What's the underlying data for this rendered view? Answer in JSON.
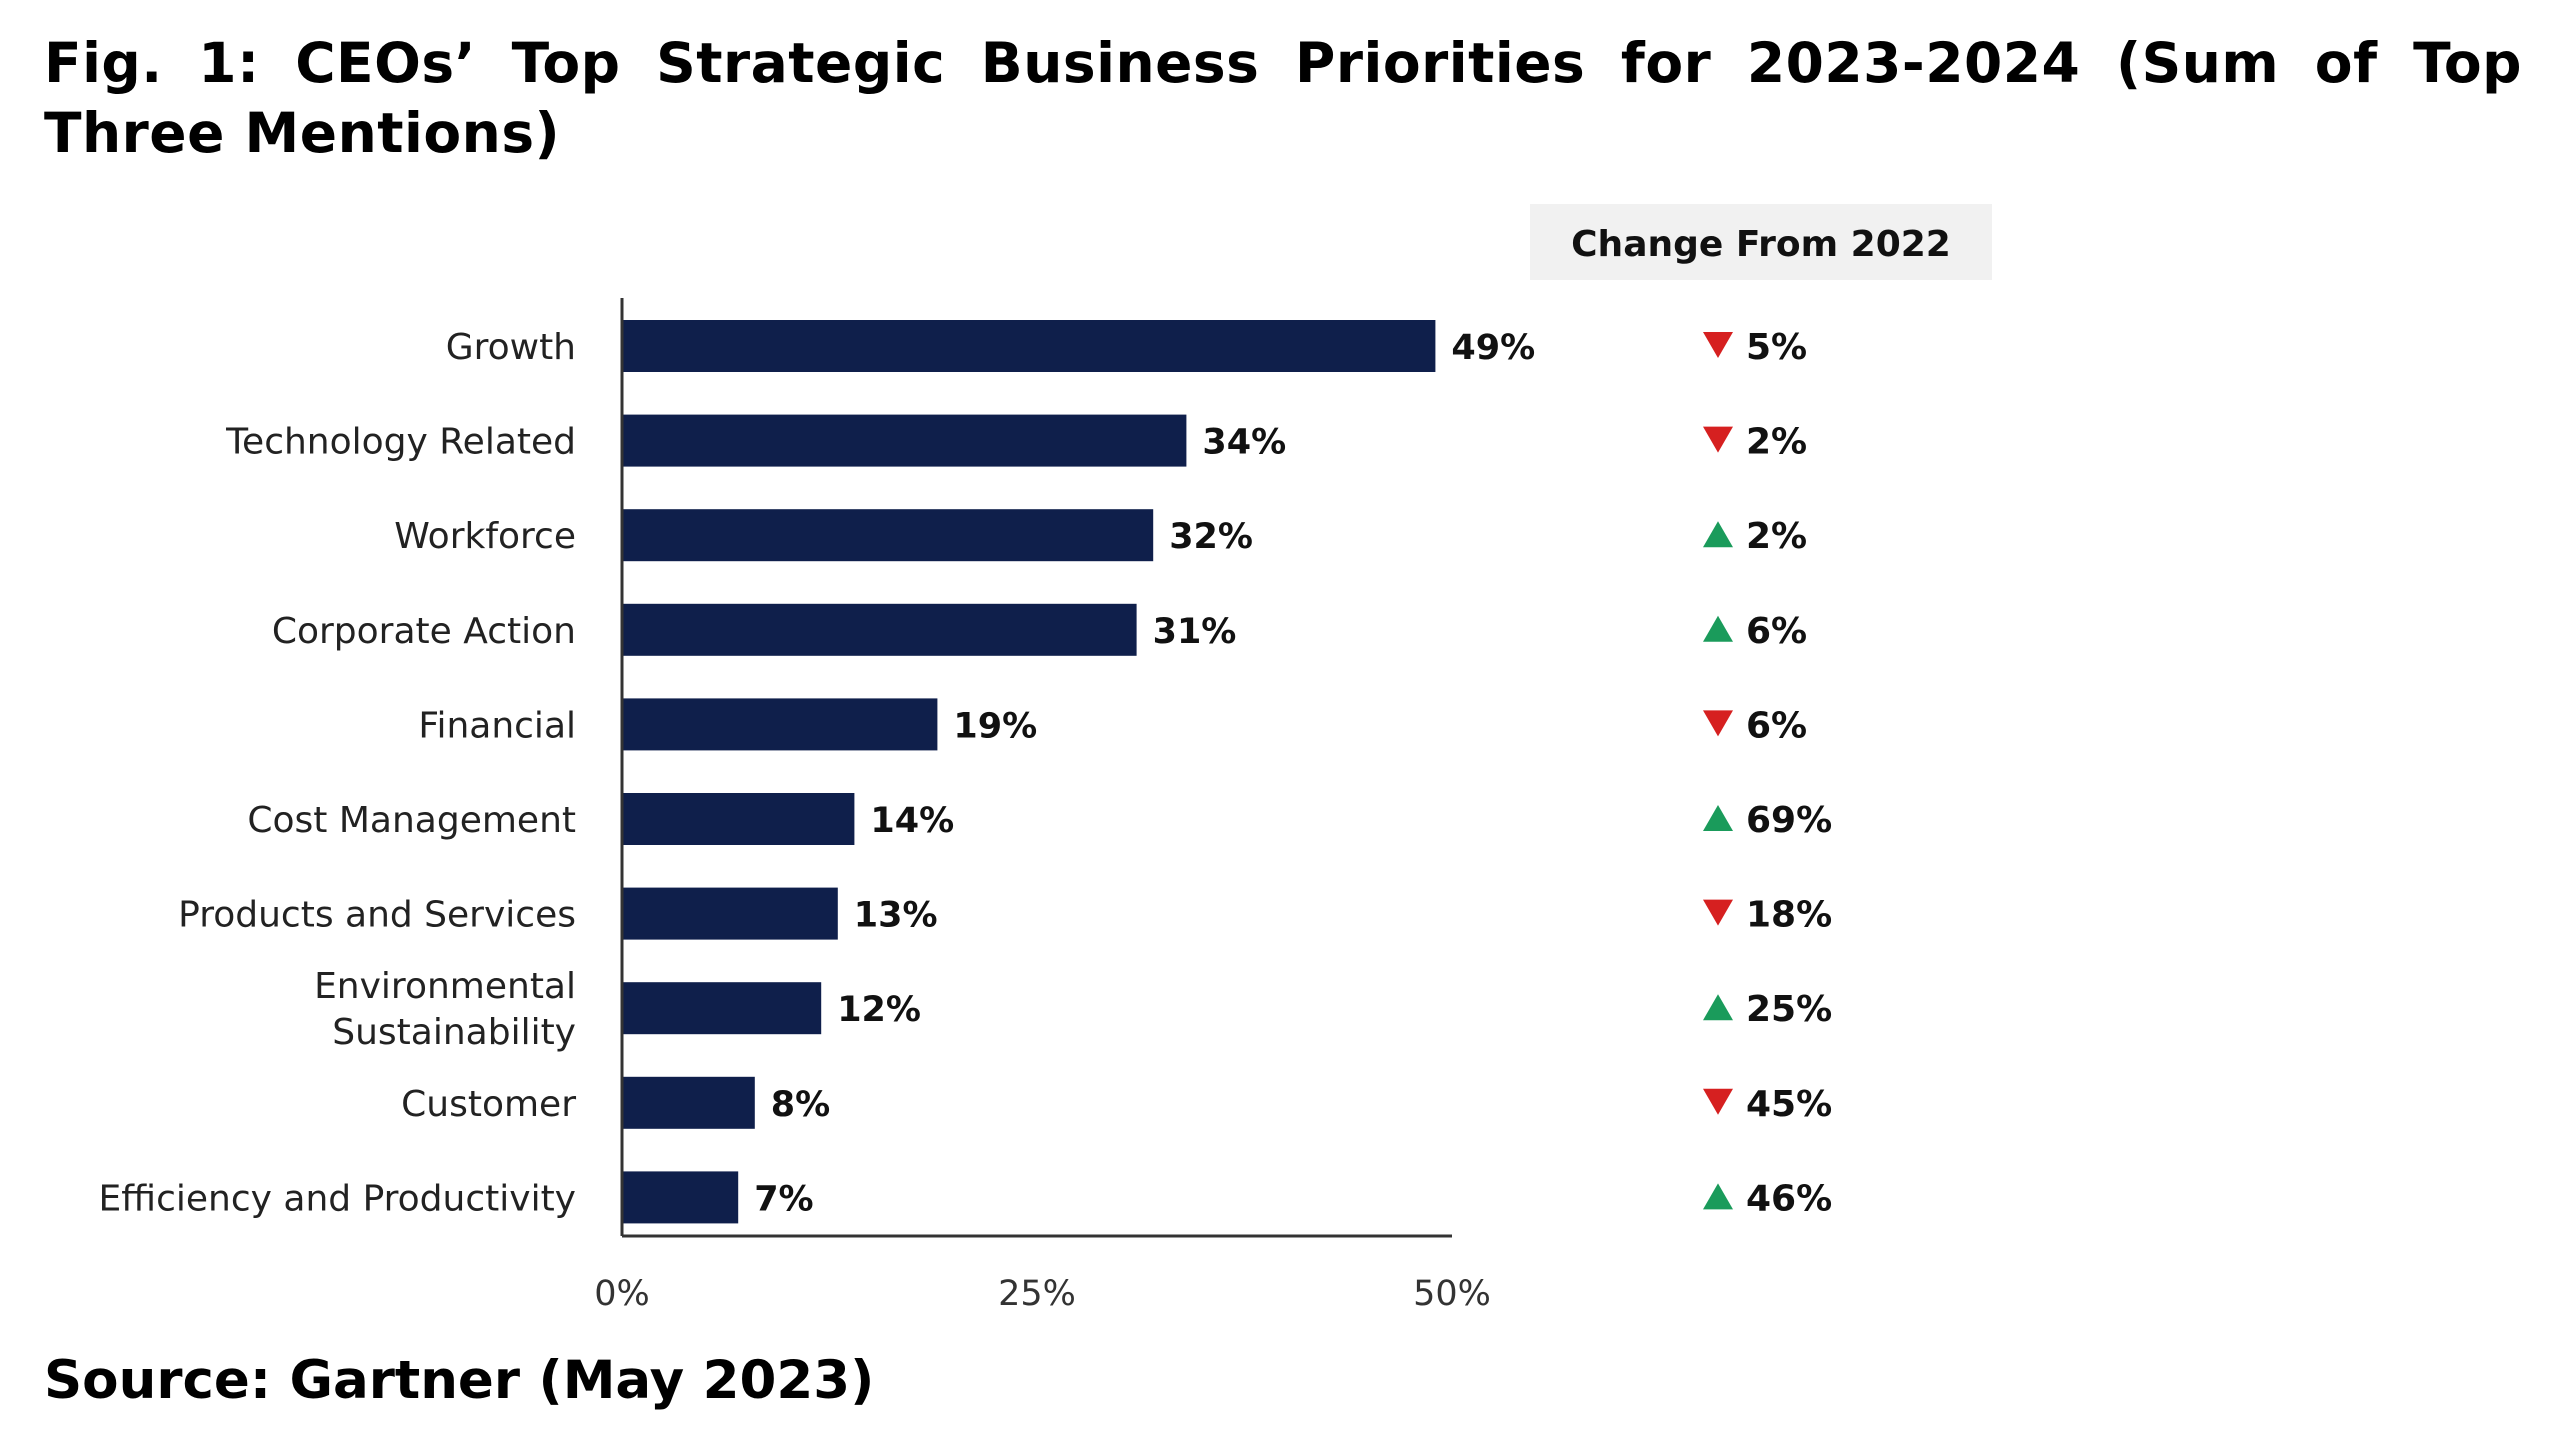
{
  "figure": {
    "title": "Fig. 1: CEOs’ Top Strategic Business Priorities for 2023-2024 (Sum of Top Three Mentions)",
    "source": "Source: Gartner (May 2023)"
  },
  "chart_data": {
    "type": "bar",
    "orientation": "horizontal",
    "title": "",
    "xlabel": "",
    "ylabel": "",
    "xlim": [
      0,
      50
    ],
    "x_ticks": [
      "0%",
      "25%",
      "50%"
    ],
    "value_suffix": "%",
    "grid": false,
    "bar_color": "#0f1f4b",
    "categories": [
      "Growth",
      "Technology Related",
      "Workforce",
      "Corporate Action",
      "Financial",
      "Cost Management",
      "Products and Services",
      "Environmental Sustainability",
      "Customer",
      "Efficiency and Productivity"
    ],
    "category_label_lines": [
      [
        "Growth"
      ],
      [
        "Technology Related"
      ],
      [
        "Workforce"
      ],
      [
        "Corporate Action"
      ],
      [
        "Financial"
      ],
      [
        "Cost Management"
      ],
      [
        "Products and Services"
      ],
      [
        "Environmental",
        "Sustainability"
      ],
      [
        "Customer"
      ],
      [
        "Efficiency and Productivity"
      ]
    ],
    "values": [
      49,
      34,
      32,
      31,
      19,
      14,
      13,
      12,
      8,
      7
    ],
    "change_header": "Change From 2022",
    "change_from_2022": [
      {
        "direction": "down",
        "value": "5%"
      },
      {
        "direction": "down",
        "value": "2%"
      },
      {
        "direction": "up",
        "value": "2%"
      },
      {
        "direction": "up",
        "value": "6%"
      },
      {
        "direction": "down",
        "value": "6%"
      },
      {
        "direction": "up",
        "value": "69%"
      },
      {
        "direction": "down",
        "value": "18%"
      },
      {
        "direction": "up",
        "value": "25%"
      },
      {
        "direction": "down",
        "value": "45%"
      },
      {
        "direction": "up",
        "value": "46%"
      }
    ],
    "colors": {
      "up": "#1a9b5b",
      "down": "#d62020",
      "header_bg": "#f1f1f1",
      "axis": "#333333"
    }
  }
}
